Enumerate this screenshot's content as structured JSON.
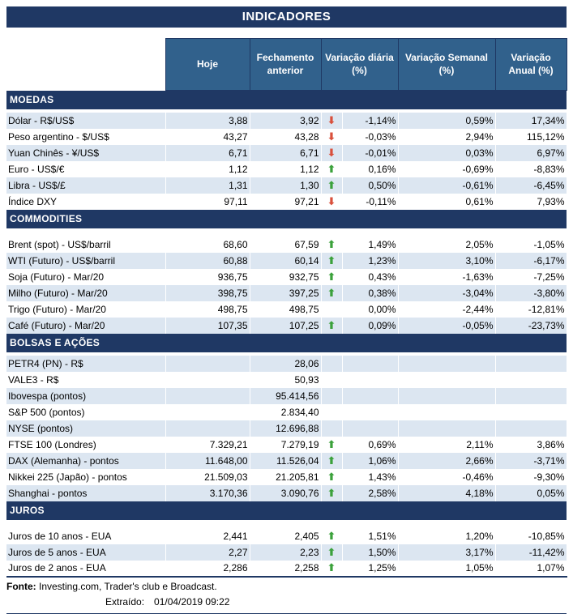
{
  "title": "INDICADORES",
  "columns": [
    "Hoje",
    "Fechamento anterior",
    "Variação diária (%)",
    "Variação Semanal (%)",
    "Variação Anual (%)"
  ],
  "icons": {
    "up": "⬆",
    "down": "⬇"
  },
  "colors": {
    "navy": "#1F3864",
    "header_blue": "#31618C",
    "stripe": "#DCE6F1",
    "arrow_up": "#3BA13B",
    "arrow_down": "#D9503C"
  },
  "sections": [
    {
      "name": "MOEDAS",
      "rows": [
        {
          "label": "Dólar - R$/US$",
          "hoje": "3,88",
          "fechamento": "3,92",
          "arrow": "down",
          "diaria": "-1,14%",
          "semanal": "0,59%",
          "anual": "17,34%"
        },
        {
          "label": "Peso argentino - $/US$",
          "hoje": "43,27",
          "fechamento": "43,28",
          "arrow": "down",
          "diaria": "-0,03%",
          "semanal": "2,94%",
          "anual": "115,12%"
        },
        {
          "label": "Yuan Chinês - ¥/US$",
          "hoje": "6,71",
          "fechamento": "6,71",
          "arrow": "down",
          "diaria": "-0,01%",
          "semanal": "0,03%",
          "anual": "6,97%"
        },
        {
          "label": "Euro - US$/€",
          "hoje": "1,12",
          "fechamento": "1,12",
          "arrow": "up",
          "diaria": "0,16%",
          "semanal": "-0,69%",
          "anual": "-8,83%"
        },
        {
          "label": "Libra - US$/£",
          "hoje": "1,31",
          "fechamento": "1,30",
          "arrow": "up",
          "diaria": "0,50%",
          "semanal": "-0,61%",
          "anual": "-6,45%"
        },
        {
          "label": "Índice DXY",
          "hoje": "97,11",
          "fechamento": "97,21",
          "arrow": "down",
          "diaria": "-0,11%",
          "semanal": "0,61%",
          "anual": "7,93%"
        }
      ]
    },
    {
      "name": "COMMODITIES",
      "rows": [
        {
          "label": "Brent (spot) - US$/barril",
          "hoje": "68,60",
          "fechamento": "67,59",
          "arrow": "up",
          "diaria": "1,49%",
          "semanal": "2,05%",
          "anual": "-1,05%"
        },
        {
          "label": "WTI (Futuro) - US$/barril",
          "hoje": "60,88",
          "fechamento": "60,14",
          "arrow": "up",
          "diaria": "1,23%",
          "semanal": "3,10%",
          "anual": "-6,17%"
        },
        {
          "label": "Soja (Futuro) - Mar/20",
          "hoje": "936,75",
          "fechamento": "932,75",
          "arrow": "up",
          "diaria": "0,43%",
          "semanal": "-1,63%",
          "anual": "-7,25%"
        },
        {
          "label": "Milho (Futuro) - Mar/20",
          "hoje": "398,75",
          "fechamento": "397,25",
          "arrow": "up",
          "diaria": "0,38%",
          "semanal": "-3,04%",
          "anual": "-3,80%"
        },
        {
          "label": "Trigo (Futuro) - Mar/20",
          "hoje": "498,75",
          "fechamento": "498,75",
          "arrow": "none",
          "diaria": "0,00%",
          "semanal": "-2,44%",
          "anual": "-12,81%"
        },
        {
          "label": "Café (Futuro) - Mar/20",
          "hoje": "107,35",
          "fechamento": "107,25",
          "arrow": "up",
          "diaria": "0,09%",
          "semanal": "-0,05%",
          "anual": "-23,73%"
        }
      ]
    },
    {
      "name": "BOLSAS E AÇÕES",
      "rows": [
        {
          "label": "PETR4 (PN) - R$",
          "hoje": "",
          "fechamento": "28,06",
          "arrow": "none",
          "diaria": "",
          "semanal": "",
          "anual": ""
        },
        {
          "label": "VALE3 - R$",
          "hoje": "",
          "fechamento": "50,93",
          "arrow": "none",
          "diaria": "",
          "semanal": "",
          "anual": ""
        },
        {
          "label": "Ibovespa (pontos)",
          "hoje": "",
          "fechamento": "95.414,56",
          "arrow": "none",
          "diaria": "",
          "semanal": "",
          "anual": ""
        },
        {
          "label": "S&P 500 (pontos)",
          "hoje": "",
          "fechamento": "2.834,40",
          "arrow": "none",
          "diaria": "",
          "semanal": "",
          "anual": ""
        },
        {
          "label": "NYSE (pontos)",
          "hoje": "",
          "fechamento": "12.696,88",
          "arrow": "none",
          "diaria": "",
          "semanal": "",
          "anual": ""
        },
        {
          "label": "FTSE 100 (Londres)",
          "hoje": "7.329,21",
          "fechamento": "7.279,19",
          "arrow": "up",
          "diaria": "0,69%",
          "semanal": "2,11%",
          "anual": "3,86%"
        },
        {
          "label": "DAX (Alemanha) - pontos",
          "hoje": "11.648,00",
          "fechamento": "11.526,04",
          "arrow": "up",
          "diaria": "1,06%",
          "semanal": "2,66%",
          "anual": "-3,71%"
        },
        {
          "label": "Nikkei 225 (Japão) - pontos",
          "hoje": "21.509,03",
          "fechamento": "21.205,81",
          "arrow": "up",
          "diaria": "1,43%",
          "semanal": "-0,46%",
          "anual": "-9,30%"
        },
        {
          "label": "Shanghai - pontos",
          "hoje": "3.170,36",
          "fechamento": "3.090,76",
          "arrow": "up",
          "diaria": "2,58%",
          "semanal": "4,18%",
          "anual": "0,05%"
        }
      ]
    },
    {
      "name": "JUROS",
      "rows": [
        {
          "label": "Juros de 10 anos - EUA",
          "hoje": "2,441",
          "fechamento": "2,405",
          "arrow": "up",
          "diaria": "1,51%",
          "semanal": "1,20%",
          "anual": "-10,85%"
        },
        {
          "label": "Juros de 5 anos - EUA",
          "hoje": "2,27",
          "fechamento": "2,23",
          "arrow": "up",
          "diaria": "1,50%",
          "semanal": "3,17%",
          "anual": "-11,42%"
        },
        {
          "label": "Juros de 2 anos - EUA",
          "hoje": "2,286",
          "fechamento": "2,258",
          "arrow": "up",
          "diaria": "1,25%",
          "semanal": "1,05%",
          "anual": "1,07%"
        }
      ]
    }
  ],
  "footer": {
    "fonte_label": "Fonte:",
    "fonte_text": "Investing.com, Trader's club e Broadcast.",
    "extraido_label": "Extraído:",
    "extraido_value": "01/04/2019 09:22"
  }
}
